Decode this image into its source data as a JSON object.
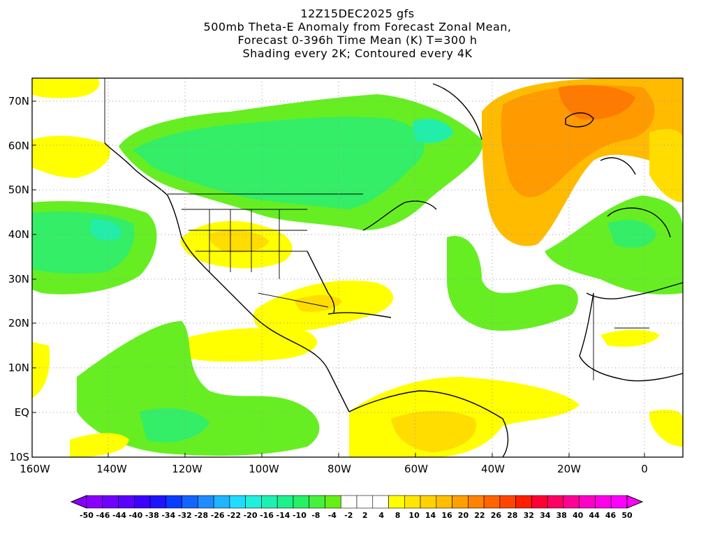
{
  "title": {
    "line1": "12Z15DEC2025 gfs",
    "line2": "500mb Theta-E Anomaly from Forecast Zonal Mean,",
    "line3": "Forecast 0-396h Time Mean (K) T=300 h",
    "line4": "Shading every 2K; Contoured every 4K"
  },
  "axes": {
    "lat_labels": [
      "70N",
      "60N",
      "50N",
      "40N",
      "30N",
      "20N",
      "10N",
      "EQ",
      "10S"
    ],
    "lon_labels": [
      "160W",
      "140W",
      "120W",
      "100W",
      "80W",
      "60W",
      "40W",
      "20W",
      "0"
    ],
    "lat_range": [
      -10,
      75
    ],
    "lon_range": [
      -160,
      10
    ],
    "grid": "dotted"
  },
  "colorbar": {
    "labels": [
      "-50",
      "-46",
      "-44",
      "-40",
      "-38",
      "-34",
      "-32",
      "-28",
      "-26",
      "-22",
      "-20",
      "-16",
      "-14",
      "-10",
      "-8",
      "-4",
      "-2",
      "2",
      "4",
      "8",
      "10",
      "14",
      "16",
      "20",
      "22",
      "26",
      "28",
      "32",
      "34",
      "38",
      "40",
      "44",
      "46",
      "50"
    ],
    "colors": [
      "#8a00ff",
      "#7000ff",
      "#5a00ff",
      "#3c00ff",
      "#1e14ff",
      "#0a3cff",
      "#1464ff",
      "#1e8cff",
      "#1eb4ff",
      "#1edcff",
      "#1ef0dc",
      "#1ef0b4",
      "#1ef08c",
      "#28f064",
      "#46f03c",
      "#64f014",
      "#ffffff",
      "#ffffff",
      "#ffffff",
      "#ffff00",
      "#ffe600",
      "#ffd200",
      "#ffbe00",
      "#ffa000",
      "#ff8200",
      "#ff6400",
      "#ff4600",
      "#ff1e00",
      "#ff0032",
      "#ff0064",
      "#ff0096",
      "#ff00c8",
      "#ff00e6",
      "#ff00ff"
    ]
  },
  "colors": {
    "light_green": "#66ee22",
    "green": "#33ee66",
    "teal_green": "#22eeaa",
    "yellow": "#ffff00",
    "gold": "#ffdd00",
    "orange_light": "#ffbb00",
    "orange": "#ff9a00",
    "orange_dark": "#ff7a00"
  }
}
